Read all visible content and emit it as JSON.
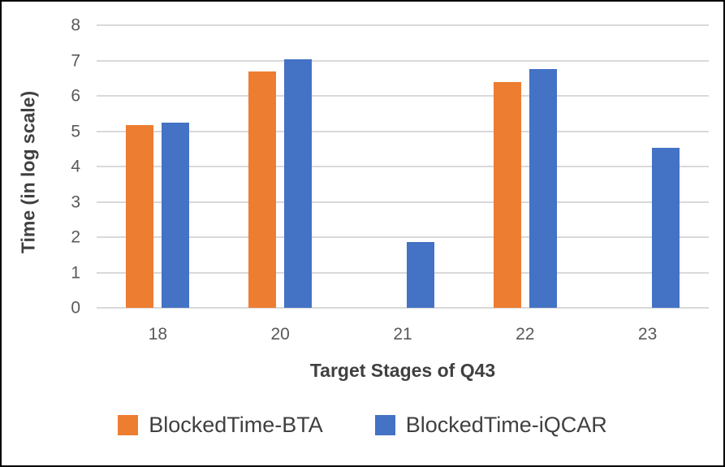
{
  "chart_data": {
    "type": "bar",
    "title": "",
    "xlabel": "Target Stages of Q43",
    "ylabel": "Time (in log scale)",
    "categories": [
      "18",
      "20",
      "21",
      "22",
      "23"
    ],
    "series": [
      {
        "name": "BlockedTime-BTA",
        "color": "#ED7D31",
        "values": [
          5.17,
          6.7,
          0,
          6.4,
          0
        ]
      },
      {
        "name": "BlockedTime-iQCAR",
        "color": "#4472C4",
        "values": [
          5.24,
          7.03,
          1.86,
          6.76,
          4.53
        ]
      }
    ],
    "ylim": [
      0,
      8
    ],
    "yticks": [
      0,
      1,
      2,
      3,
      4,
      5,
      6,
      7,
      8
    ],
    "grid": true,
    "legend_position": "bottom",
    "gridline_color": "#D9D9D9",
    "tick_label_color": "#595959",
    "axis_title_color": "#404040",
    "frame_border_color": "#000000"
  }
}
